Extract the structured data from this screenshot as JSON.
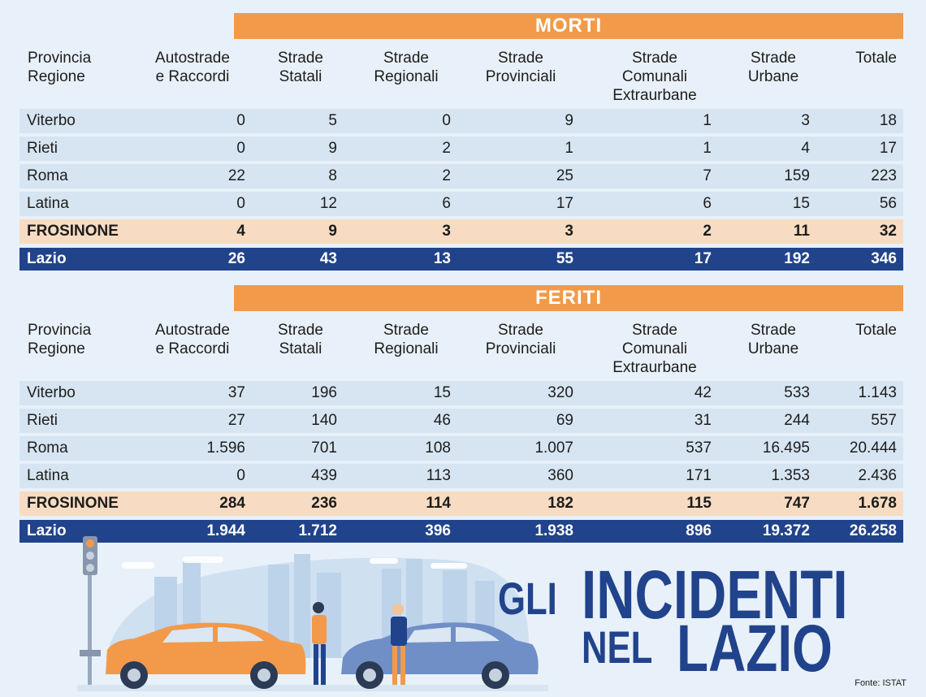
{
  "morti": {
    "banner": "MORTI",
    "headers": [
      "Provincia\nRegione",
      "Autostrade\ne Raccordi",
      "Strade\nStatali",
      "Strade\nRegionali",
      "Strade\nProvinciali",
      "Strade\nComunali\nExtraurbane",
      "Strade\nUrbane",
      "Totale"
    ],
    "rows": [
      [
        "Viterbo",
        "0",
        "5",
        "0",
        "9",
        "1",
        "3",
        "18"
      ],
      [
        "Rieti",
        "0",
        "9",
        "2",
        "1",
        "1",
        "4",
        "17"
      ],
      [
        "Roma",
        "22",
        "8",
        "2",
        "25",
        "7",
        "159",
        "223"
      ],
      [
        "Latina",
        "0",
        "12",
        "6",
        "17",
        "6",
        "15",
        "56"
      ],
      [
        "FROSINONE",
        "4",
        "9",
        "3",
        "3",
        "2",
        "11",
        "32"
      ],
      [
        "Lazio",
        "26",
        "43",
        "13",
        "55",
        "17",
        "192",
        "346"
      ]
    ]
  },
  "feriti": {
    "banner": "FERITI",
    "headers": [
      "Provincia\nRegione",
      "Autostrade\ne Raccordi",
      "Strade\nStatali",
      "Strade\nRegionali",
      "Strade\nProvinciali",
      "Strade\nComunali\nExtraurbane",
      "Strade\nUrbane",
      "Totale"
    ],
    "rows": [
      [
        "Viterbo",
        "37",
        "196",
        "15",
        "320",
        "42",
        "533",
        "1.143"
      ],
      [
        "Rieti",
        "27",
        "140",
        "46",
        "69",
        "31",
        "244",
        "557"
      ],
      [
        "Roma",
        "1.596",
        "701",
        "108",
        "1.007",
        "537",
        "16.495",
        "20.444"
      ],
      [
        "Latina",
        "0",
        "439",
        "113",
        "360",
        "171",
        "1.353",
        "2.436"
      ],
      [
        "FROSINONE",
        "284",
        "236",
        "114",
        "182",
        "115",
        "747",
        "1.678"
      ],
      [
        "Lazio",
        "1.944",
        "1.712",
        "396",
        "1.938",
        "896",
        "19.372",
        "26.258"
      ]
    ]
  },
  "headline": {
    "gli": "GLI",
    "incidenti": "INCIDENTI",
    "nel": "NEL",
    "lazio": "LAZIO"
  },
  "source": "Fonte: ISTAT",
  "colors": {
    "accent_orange": "#f29a4a",
    "highlight_row": "#f7dcc3",
    "total_row": "#21438b",
    "row_bg": "#d7e5f2",
    "background": "#e8f1f9"
  }
}
